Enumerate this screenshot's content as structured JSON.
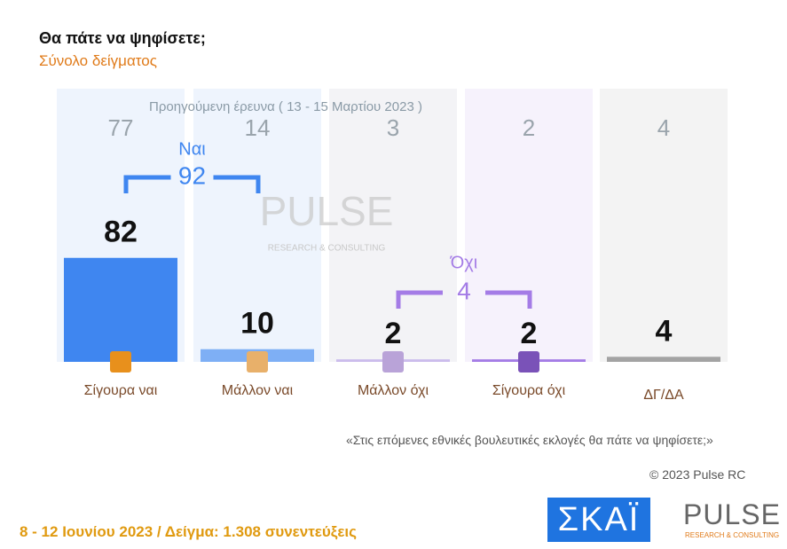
{
  "chart_data": {
    "type": "bar",
    "title": "Θα πάτε να ψηφίσετε;",
    "subtitle": "Σύνολο δείγματος",
    "categories": [
      "Σίγουρα ναι",
      "Μάλλον ναι",
      "Μάλλον όχι",
      "Σίγουρα όχι",
      "ΔΓ/ΔΑ"
    ],
    "values": [
      82,
      10,
      2,
      2,
      4
    ],
    "colors": [
      "#3f86f0",
      "#7eaff5",
      "#cbbcec",
      "#a47ce6",
      "#a3a3a3"
    ],
    "ylim": [
      0,
      100
    ],
    "previous": {
      "label": "Προηγούμενη έρευνα ( 13 - 15 Μαρτίου 2023 )",
      "values": [
        77,
        14,
        3,
        2,
        4
      ]
    },
    "groups": [
      {
        "label": "Ναι",
        "value": 92,
        "color": "#3f86f0"
      },
      {
        "label": "Όχι",
        "value": 4,
        "color": "#a47ce6"
      }
    ],
    "question": "«Στις επόμενες εθνικές βουλευτικές εκλογές θα πάτε να ψηφίσετε;»",
    "copyright": "© 2023 Pulse RC",
    "footer": "8 - 12 Ιουνίου 2023 / Δείγμα: 1.308 συνεντεύξεις",
    "logos": {
      "channel": "ΣΚΑΪ",
      "pulse": "PULSE",
      "pulse_sub": "RESEARCH & CONSULTING"
    }
  }
}
